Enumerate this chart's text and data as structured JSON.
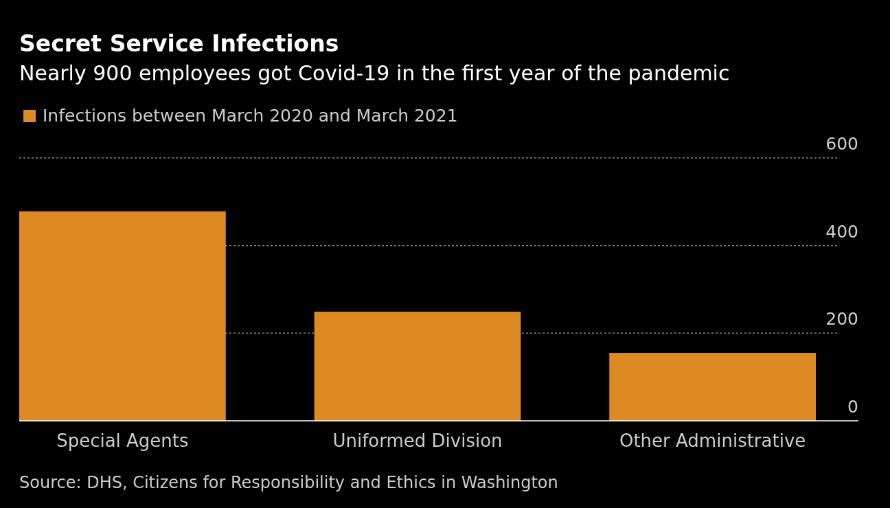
{
  "chart_data": {
    "type": "bar",
    "title": "Secret Service Infections",
    "subtitle": "Nearly 900 employees got Covid-19 in the first year of the pandemic",
    "categories": [
      "Special Agents",
      "Uniformed Division",
      "Other Administrative"
    ],
    "series": [
      {
        "name": "Infections between March 2020 and March 2021",
        "color": "#dc8a22",
        "values": [
          478,
          249,
          155
        ]
      }
    ],
    "ylim": [
      0,
      600
    ],
    "yticks": [
      0,
      200,
      400,
      600
    ],
    "grid": "y",
    "legend": "top left",
    "annotations": [
      "Source: DHS, Citizens for Responsibility and Ethics in Washington"
    ]
  }
}
